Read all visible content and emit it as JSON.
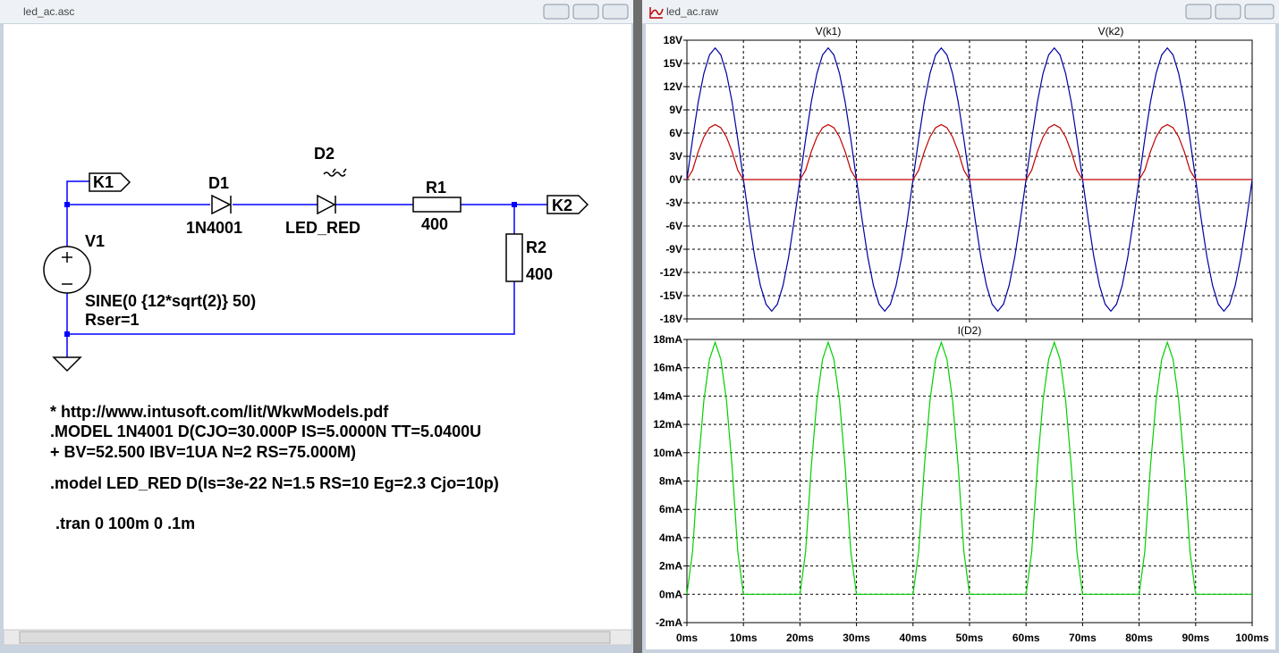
{
  "schematic_window": {
    "title": "led_ac.asc",
    "labels": {
      "k1": "K1",
      "d1": "D1",
      "d1_model": "1N4001",
      "d2": "D2",
      "d2_model": "LED_RED",
      "r1": "R1",
      "r1_value": "400",
      "k2": "K2",
      "r2": "R2",
      "r2_value": "400",
      "v1": "V1",
      "v1_value": "SINE(0 {12*sqrt(2)} 50)",
      "v1_rser": "Rser=1"
    },
    "directives": [
      "* http://www.intusoft.com/lit/WkwModels.pdf",
      ".MODEL 1N4001 D(CJO=30.000P IS=5.0000N TT=5.0400U",
      "+ BV=52.500 IBV=1UA N=2 RS=75.000M)",
      ".model LED_RED D(Is=3e-22 N=1.5 RS=10 Eg=2.3 Cjo=10p)",
      ".tran 0 100m 0 .1m"
    ]
  },
  "plot_window": {
    "title": "led_ac.raw",
    "grid": true,
    "xlim": [
      0,
      100
    ],
    "xticks": [
      {
        "value": 0,
        "label": "0ms"
      },
      {
        "value": 10,
        "label": "10ms"
      },
      {
        "value": 20,
        "label": "20ms"
      },
      {
        "value": 30,
        "label": "30ms"
      },
      {
        "value": 40,
        "label": "40ms"
      },
      {
        "value": 50,
        "label": "50ms"
      },
      {
        "value": 60,
        "label": "60ms"
      },
      {
        "value": 70,
        "label": "70ms"
      },
      {
        "value": 80,
        "label": "80ms"
      },
      {
        "value": 90,
        "label": "90ms"
      },
      {
        "value": 100,
        "label": "100ms"
      }
    ],
    "x": [
      0,
      1,
      2,
      3,
      4,
      5,
      6,
      7,
      8,
      9,
      10,
      11,
      12,
      13,
      14,
      15,
      16,
      17,
      18,
      19,
      20,
      21,
      22,
      23,
      24,
      25,
      26,
      27,
      28,
      29,
      30,
      31,
      32,
      33,
      34,
      35,
      36,
      37,
      38,
      39,
      40,
      41,
      42,
      43,
      44,
      45,
      46,
      47,
      48,
      49,
      50,
      51,
      52,
      53,
      54,
      55,
      56,
      57,
      58,
      59,
      60,
      61,
      62,
      63,
      64,
      65,
      66,
      67,
      68,
      69,
      70,
      71,
      72,
      73,
      74,
      75,
      76,
      77,
      78,
      79,
      80,
      81,
      82,
      83,
      84,
      85,
      86,
      87,
      88,
      89,
      90,
      91,
      92,
      93,
      94,
      95,
      96,
      97,
      98,
      99,
      100
    ],
    "panes": [
      {
        "ylim": [
          -18,
          18
        ],
        "yticks": [
          {
            "value": -18,
            "label": "-18V"
          },
          {
            "value": -15,
            "label": "-15V"
          },
          {
            "value": -12,
            "label": "-12V"
          },
          {
            "value": -9,
            "label": "-9V"
          },
          {
            "value": -6,
            "label": "-6V"
          },
          {
            "value": -3,
            "label": "-3V"
          },
          {
            "value": 0,
            "label": "0V"
          },
          {
            "value": 3,
            "label": "3V"
          },
          {
            "value": 6,
            "label": "6V"
          },
          {
            "value": 9,
            "label": "9V"
          },
          {
            "value": 12,
            "label": "12V"
          },
          {
            "value": 15,
            "label": "15V"
          },
          {
            "value": 18,
            "label": "18V"
          }
        ],
        "series": [
          {
            "name": "V(k1)",
            "color": "#0000a0",
            "values": [
              0,
              5.2,
              10,
              13.7,
              16.1,
              17,
              16.1,
              13.7,
              10,
              5.2,
              0,
              -5.2,
              -10,
              -13.7,
              -16.1,
              -17,
              -16.1,
              -13.7,
              -10,
              -5.2,
              0,
              5.2,
              10,
              13.7,
              16.1,
              17,
              16.1,
              13.7,
              10,
              5.2,
              0,
              -5.2,
              -10,
              -13.7,
              -16.1,
              -17,
              -16.1,
              -13.7,
              -10,
              -5.2,
              0,
              5.2,
              10,
              13.7,
              16.1,
              17,
              16.1,
              13.7,
              10,
              5.2,
              0,
              -5.2,
              -10,
              -13.7,
              -16.1,
              -17,
              -16.1,
              -13.7,
              -10,
              -5.2,
              0,
              5.2,
              10,
              13.7,
              16.1,
              17,
              16.1,
              13.7,
              10,
              5.2,
              0,
              -5.2,
              -10,
              -13.7,
              -16.1,
              -17,
              -16.1,
              -13.7,
              -10,
              -5.2,
              0,
              5.2,
              10,
              13.7,
              16.1,
              17,
              16.1,
              13.7,
              10,
              5.2,
              0,
              -5.2,
              -10,
              -13.7,
              -16.1,
              -17,
              -16.1,
              -13.7,
              -10,
              -5.2,
              0
            ]
          },
          {
            "name": "V(k2)",
            "color": "#c00000",
            "values": [
              0,
              1.2,
              3.6,
              5.5,
              6.7,
              7.1,
              6.7,
              5.5,
              3.6,
              1.2,
              0,
              0,
              0,
              0,
              0,
              0,
              0,
              0,
              0,
              0,
              0,
              1.2,
              3.6,
              5.5,
              6.7,
              7.1,
              6.7,
              5.5,
              3.6,
              1.2,
              0,
              0,
              0,
              0,
              0,
              0,
              0,
              0,
              0,
              0,
              0,
              1.2,
              3.6,
              5.5,
              6.7,
              7.1,
              6.7,
              5.5,
              3.6,
              1.2,
              0,
              0,
              0,
              0,
              0,
              0,
              0,
              0,
              0,
              0,
              0,
              1.2,
              3.6,
              5.5,
              6.7,
              7.1,
              6.7,
              5.5,
              3.6,
              1.2,
              0,
              0,
              0,
              0,
              0,
              0,
              0,
              0,
              0,
              0,
              0,
              1.2,
              3.6,
              5.5,
              6.7,
              7.1,
              6.7,
              5.5,
              3.6,
              1.2,
              0,
              0,
              0,
              0,
              0,
              0,
              0,
              0,
              0,
              0,
              0
            ]
          }
        ]
      },
      {
        "ylim": [
          -2,
          18
        ],
        "yticks": [
          {
            "value": -2,
            "label": "-2mA"
          },
          {
            "value": 0,
            "label": "0mA"
          },
          {
            "value": 2,
            "label": "2mA"
          },
          {
            "value": 4,
            "label": "4mA"
          },
          {
            "value": 6,
            "label": "6mA"
          },
          {
            "value": 8,
            "label": "8mA"
          },
          {
            "value": 10,
            "label": "10mA"
          },
          {
            "value": 12,
            "label": "12mA"
          },
          {
            "value": 14,
            "label": "14mA"
          },
          {
            "value": 16,
            "label": "16mA"
          },
          {
            "value": 18,
            "label": "18mA"
          }
        ],
        "series": [
          {
            "name": "I(D2)",
            "color": "#00d000",
            "values": [
              0,
              3,
              9,
              13.7,
              16.6,
              17.8,
              16.6,
              13.7,
              9,
              3,
              0,
              0,
              0,
              0,
              0,
              0,
              0,
              0,
              0,
              0,
              0,
              3,
              9,
              13.7,
              16.6,
              17.8,
              16.6,
              13.7,
              9,
              3,
              0,
              0,
              0,
              0,
              0,
              0,
              0,
              0,
              0,
              0,
              0,
              3,
              9,
              13.7,
              16.6,
              17.8,
              16.6,
              13.7,
              9,
              3,
              0,
              0,
              0,
              0,
              0,
              0,
              0,
              0,
              0,
              0,
              0,
              3,
              9,
              13.7,
              16.6,
              17.8,
              16.6,
              13.7,
              9,
              3,
              0,
              0,
              0,
              0,
              0,
              0,
              0,
              0,
              0,
              0,
              0,
              3,
              9,
              13.7,
              16.6,
              17.8,
              16.6,
              13.7,
              9,
              3,
              0,
              0,
              0,
              0,
              0,
              0,
              0,
              0,
              0,
              0,
              0
            ]
          }
        ]
      }
    ]
  }
}
